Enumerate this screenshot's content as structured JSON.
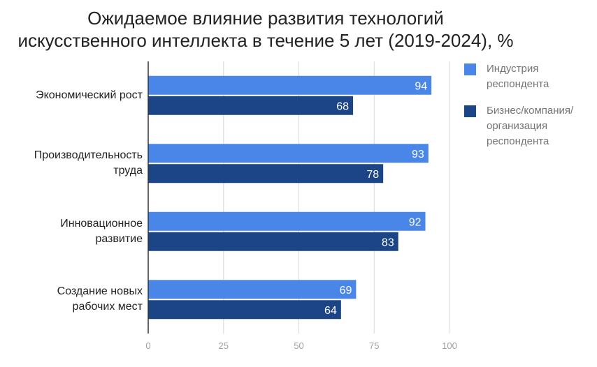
{
  "chart_data": {
    "type": "bar",
    "orientation": "horizontal",
    "title_lines": [
      "Ожидаемое влияние развития технологий",
      "искусственного интеллекта в течение 5 лет (2019-2024), %"
    ],
    "categories": [
      [
        "Экономический рост"
      ],
      [
        "Производительность",
        "труда"
      ],
      [
        "Инновационное",
        "развитие"
      ],
      [
        "Создание новых",
        "рабочих мест"
      ]
    ],
    "series": [
      {
        "name": "Индустрия респондента",
        "name_lines": [
          "Индустрия",
          "респондента"
        ],
        "values": [
          94,
          93,
          92,
          69
        ],
        "color": "#4a86e8"
      },
      {
        "name": "Бизнес/компания/ организация респондента",
        "name_lines": [
          "Бизнес/компания/",
          "организация",
          "респондента"
        ],
        "values": [
          68,
          78,
          83,
          64
        ],
        "color": "#1c4587"
      }
    ],
    "xlim": [
      0,
      100
    ],
    "xticks": [
      0,
      25,
      50,
      75,
      100
    ],
    "grid": true,
    "data_labels": true,
    "legend_position": "right"
  }
}
